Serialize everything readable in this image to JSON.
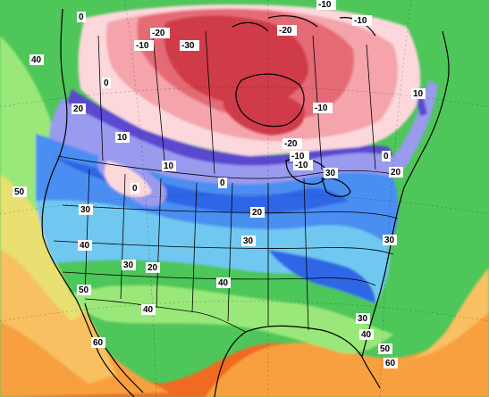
{
  "map": {
    "projection": "polar-stereographic",
    "region": "North America",
    "field": "temperature",
    "color_scale": [
      {
        "value": -30,
        "color": "#d03a4a"
      },
      {
        "value": -20,
        "color": "#e46a74"
      },
      {
        "value": -10,
        "color": "#f4a4aa"
      },
      {
        "value": 0,
        "color": "#fcd8dc"
      },
      {
        "value": 5,
        "color": "#5a4ad0"
      },
      {
        "value": 10,
        "color": "#9a9aee"
      },
      {
        "value": 15,
        "color": "#2e66e6"
      },
      {
        "value": 20,
        "color": "#4c8ef2"
      },
      {
        "value": 30,
        "color": "#70c8f0"
      },
      {
        "value": 35,
        "color": "#4ec65a"
      },
      {
        "value": 40,
        "color": "#9ae87a"
      },
      {
        "value": 50,
        "color": "#e8e070"
      },
      {
        "value": 55,
        "color": "#f8c060"
      },
      {
        "value": 60,
        "color": "#f8a040"
      },
      {
        "value": 70,
        "color": "#f06a20"
      }
    ],
    "labels": [
      {
        "text": "0",
        "name": "label-0-alaska"
      },
      {
        "text": "-20",
        "name": "label-minus20-yukon"
      },
      {
        "text": "-10",
        "name": "label-minus10-yukon"
      },
      {
        "text": "-30",
        "name": "label-minus30-nwt"
      },
      {
        "text": "-20",
        "name": "label-minus20-nunavut"
      },
      {
        "text": "-10",
        "name": "label-minus10-arctic"
      },
      {
        "text": "-10",
        "name": "label-minus10-greenland"
      },
      {
        "text": "-10",
        "name": "label-minus10-hudson"
      },
      {
        "text": "0",
        "name": "label-0-bc"
      },
      {
        "text": "40",
        "name": "label-40-pacific-north"
      },
      {
        "text": "20",
        "name": "label-20-bc-coast"
      },
      {
        "text": "10",
        "name": "label-10-washington"
      },
      {
        "text": "10",
        "name": "label-10-montana"
      },
      {
        "text": "0",
        "name": "label-0-prairies"
      },
      {
        "text": "0",
        "name": "label-0-dakota"
      },
      {
        "text": "-20",
        "name": "label-minus20-ontario"
      },
      {
        "text": "-10",
        "name": "label-minus10-superior"
      },
      {
        "text": "-10",
        "name": "label-minus10-ontario-east"
      },
      {
        "text": "10",
        "name": "label-10-labrador"
      },
      {
        "text": "0",
        "name": "label-0-quebec"
      },
      {
        "text": "30",
        "name": "label-30-great-lakes"
      },
      {
        "text": "20",
        "name": "label-20-maine"
      },
      {
        "text": "50",
        "name": "label-50-pacific"
      },
      {
        "text": "30",
        "name": "label-30-oregon"
      },
      {
        "text": "20",
        "name": "label-20-iowa"
      },
      {
        "text": "40",
        "name": "label-40-california-north"
      },
      {
        "text": "30",
        "name": "label-30-nevada"
      },
      {
        "text": "20",
        "name": "label-20-colorado"
      },
      {
        "text": "30",
        "name": "label-30-kansas"
      },
      {
        "text": "30",
        "name": "label-30-virginia"
      },
      {
        "text": "50",
        "name": "label-50-california-south"
      },
      {
        "text": "40",
        "name": "label-40-arizona"
      },
      {
        "text": "40",
        "name": "label-40-texas"
      },
      {
        "text": "30",
        "name": "label-30-carolina"
      },
      {
        "text": "40",
        "name": "label-40-georgia"
      },
      {
        "text": "60",
        "name": "label-60-baja"
      },
      {
        "text": "50",
        "name": "label-50-florida"
      },
      {
        "text": "60",
        "name": "label-60-atlantic"
      }
    ]
  }
}
